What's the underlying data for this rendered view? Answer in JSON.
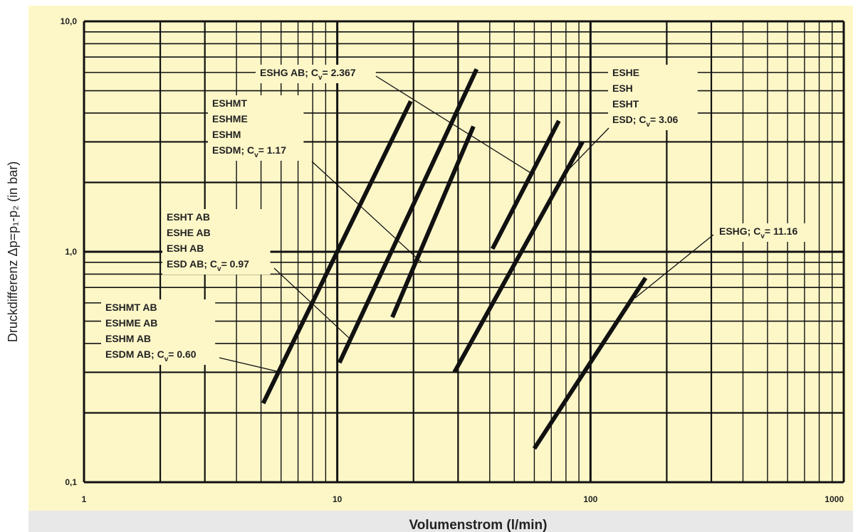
{
  "chart_data": {
    "type": "line",
    "xscale": "log",
    "yscale": "log",
    "xlim": [
      1,
      1000
    ],
    "ylim": [
      0.1,
      10
    ],
    "grid": true,
    "xlabel": "Volumenstrom (l/min)",
    "ylabel": "Druckdifferenz Δp=p₁-p₂ (in bar)",
    "x_ticks": [
      "1",
      "10",
      "100",
      "1000"
    ],
    "y_ticks": [
      "0,1",
      "1,0",
      "10,0"
    ],
    "series": [
      {
        "cv": 0.6,
        "x": [
          5.1,
          19.5
        ],
        "y": [
          0.22,
          4.5
        ]
      },
      {
        "cv": 0.97,
        "x": [
          10.2,
          35.5
        ],
        "y": [
          0.33,
          6.2
        ]
      },
      {
        "cv": 1.17,
        "x": [
          16.5,
          34.5
        ],
        "y": [
          0.52,
          3.5
        ]
      },
      {
        "cv": 2.367,
        "x": [
          41,
          75
        ],
        "y": [
          1.03,
          3.7
        ]
      },
      {
        "cv": 3.06,
        "x": [
          29,
          93
        ],
        "y": [
          0.3,
          3.0
        ]
      },
      {
        "cv": 11.16,
        "x": [
          60,
          165
        ],
        "y": [
          0.14,
          0.77
        ]
      }
    ],
    "annotations": [
      {
        "lines": [
          "ESHMT AB",
          "ESHME AB",
          "ESHM AB"
        ],
        "last": "ESDM AB; C",
        "sub": "v",
        "value": "= 0.60",
        "target_x": 6.0,
        "target_y": 0.3
      },
      {
        "lines": [
          "ESHT AB",
          "ESHE AB",
          "ESH AB"
        ],
        "last": "ESD AB; C",
        "sub": "v",
        "value": "= 0.97",
        "target_x": 11.2,
        "target_y": 0.42
      },
      {
        "lines": [
          "ESHMT",
          "ESHME",
          "ESHM"
        ],
        "last": "ESDM; C",
        "sub": "v",
        "value": "= 1.17",
        "target_x": 21.5,
        "target_y": 0.9
      },
      {
        "lines": [],
        "last": "ESHG AB; C",
        "sub": "v",
        "value": "= 2.367",
        "target_x": 58,
        "target_y": 2.2
      },
      {
        "lines": [
          "ESHE",
          "ESH",
          "ESHT"
        ],
        "last": "ESD; C",
        "sub": "v",
        "value": "= 3.06",
        "target_x": 78,
        "target_y": 2.15
      },
      {
        "lines": [],
        "last": "ESHG; C",
        "sub": "v",
        "value": "= 11.16",
        "target_x": 150,
        "target_y": 0.63
      }
    ]
  },
  "colors": {
    "plot_bg": "#fdf7c8",
    "footer_bg": "#e8e8e8",
    "ink": "#111111"
  }
}
